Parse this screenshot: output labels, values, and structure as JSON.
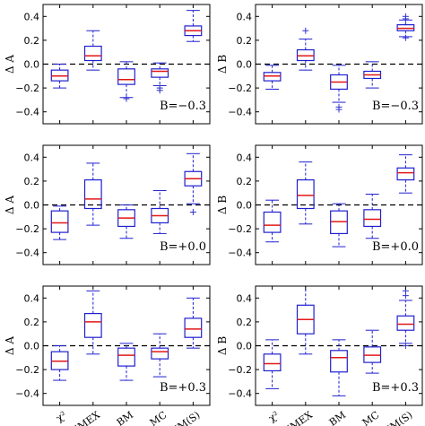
{
  "colors": {
    "box": "#1f1fd0",
    "median": "#e01818",
    "outlier": "#3030d0",
    "zero": "#000000",
    "frame": "#000000"
  },
  "chart_data": [
    {
      "type": "box",
      "ylabel": "Δ A",
      "annotation": "B=−0.3",
      "ylim": [
        -0.5,
        0.5
      ],
      "yticks": [
        "0.4",
        "0.2",
        "0.0",
        "−0.2",
        "−0.4"
      ],
      "categories": [],
      "grid": false,
      "zero_line": "dashed",
      "boxes": [
        {
          "q1": -0.14,
          "median": -0.1,
          "q3": -0.05,
          "low": -0.2,
          "high": 0.0,
          "outliers": []
        },
        {
          "q1": 0.03,
          "median": 0.07,
          "q3": 0.15,
          "low": -0.05,
          "high": 0.28,
          "outliers": []
        },
        {
          "q1": -0.17,
          "median": -0.13,
          "q3": -0.04,
          "low": -0.28,
          "high": 0.02,
          "outliers": [
            -0.29
          ]
        },
        {
          "q1": -0.11,
          "median": -0.06,
          "q3": -0.04,
          "low": -0.18,
          "high": 0.01,
          "outliers": [
            -0.2,
            -0.22
          ]
        },
        {
          "q1": 0.24,
          "median": 0.28,
          "q3": 0.32,
          "low": 0.19,
          "high": 0.45,
          "outliers": []
        }
      ]
    },
    {
      "type": "box",
      "ylabel": "Δ B",
      "annotation": "B=−0.3",
      "ylim": [
        -0.5,
        0.5
      ],
      "yticks": [
        "0.4",
        "0.2",
        "0.0",
        "−0.2",
        "−0.4"
      ],
      "categories": [],
      "grid": false,
      "zero_line": "dashed",
      "boxes": [
        {
          "q1": -0.14,
          "median": -0.1,
          "q3": -0.07,
          "low": -0.21,
          "high": -0.01,
          "outliers": []
        },
        {
          "q1": 0.03,
          "median": 0.07,
          "q3": 0.12,
          "low": -0.05,
          "high": 0.21,
          "outliers": [
            0.28
          ]
        },
        {
          "q1": -0.21,
          "median": -0.15,
          "q3": -0.09,
          "low": -0.32,
          "high": -0.01,
          "outliers": [
            -0.36,
            -0.38
          ]
        },
        {
          "q1": -0.12,
          "median": -0.09,
          "q3": -0.06,
          "low": -0.2,
          "high": 0.02,
          "outliers": []
        },
        {
          "q1": 0.28,
          "median": 0.3,
          "q3": 0.33,
          "low": 0.23,
          "high": 0.37,
          "outliers": [
            0.4,
            0.38,
            0.22
          ]
        }
      ]
    },
    {
      "type": "box",
      "ylabel": "Δ A",
      "annotation": "B=+0.0",
      "ylim": [
        -0.5,
        0.5
      ],
      "yticks": [
        "0.4",
        "0.2",
        "0.0",
        "−0.2",
        "−0.4"
      ],
      "categories": [],
      "grid": false,
      "zero_line": "dashed",
      "boxes": [
        {
          "q1": -0.23,
          "median": -0.15,
          "q3": -0.05,
          "low": -0.29,
          "high": -0.01,
          "outliers": []
        },
        {
          "q1": -0.03,
          "median": 0.05,
          "q3": 0.21,
          "low": -0.17,
          "high": 0.35,
          "outliers": []
        },
        {
          "q1": -0.18,
          "median": -0.11,
          "q3": -0.04,
          "low": -0.28,
          "high": 0.0,
          "outliers": []
        },
        {
          "q1": -0.15,
          "median": -0.09,
          "q3": -0.03,
          "low": -0.24,
          "high": 0.12,
          "outliers": []
        },
        {
          "q1": 0.16,
          "median": 0.22,
          "q3": 0.28,
          "low": 0.01,
          "high": 0.43,
          "outliers": [
            -0.06
          ]
        }
      ]
    },
    {
      "type": "box",
      "ylabel": "Δ B",
      "annotation": "B=+0.0",
      "ylim": [
        -0.5,
        0.5
      ],
      "yticks": [
        "0.4",
        "0.2",
        "0.0",
        "−0.2",
        "−0.4"
      ],
      "categories": [],
      "grid": false,
      "zero_line": "dashed",
      "boxes": [
        {
          "q1": -0.23,
          "median": -0.17,
          "q3": -0.06,
          "low": -0.31,
          "high": 0.04,
          "outliers": []
        },
        {
          "q1": -0.03,
          "median": 0.08,
          "q3": 0.21,
          "low": -0.16,
          "high": 0.36,
          "outliers": []
        },
        {
          "q1": -0.24,
          "median": -0.14,
          "q3": -0.05,
          "low": -0.35,
          "high": 0.01,
          "outliers": []
        },
        {
          "q1": -0.18,
          "median": -0.12,
          "q3": -0.04,
          "low": -0.28,
          "high": 0.09,
          "outliers": []
        },
        {
          "q1": 0.21,
          "median": 0.27,
          "q3": 0.31,
          "low": 0.1,
          "high": 0.42,
          "outliers": []
        }
      ]
    },
    {
      "type": "box",
      "ylabel": "Δ A",
      "annotation": "B=+0.3",
      "ylim": [
        -0.5,
        0.5
      ],
      "yticks": [
        "0.4",
        "0.2",
        "0.0",
        "−0.2",
        "−0.4"
      ],
      "categories": [
        "χ²",
        "SIMEX",
        "BM",
        "MC",
        "HM(S)"
      ],
      "grid": false,
      "zero_line": "dashed",
      "boxes": [
        {
          "q1": -0.2,
          "median": -0.13,
          "q3": -0.05,
          "low": -0.29,
          "high": 0.0,
          "outliers": []
        },
        {
          "q1": 0.07,
          "median": 0.2,
          "q3": 0.27,
          "low": -0.07,
          "high": 0.46,
          "outliers": []
        },
        {
          "q1": -0.17,
          "median": -0.08,
          "q3": -0.02,
          "low": -0.29,
          "high": 0.02,
          "outliers": []
        },
        {
          "q1": -0.11,
          "median": -0.05,
          "q3": -0.02,
          "low": -0.26,
          "high": 0.1,
          "outliers": []
        },
        {
          "q1": 0.07,
          "median": 0.14,
          "q3": 0.23,
          "low": -0.02,
          "high": 0.4,
          "outliers": []
        }
      ]
    },
    {
      "type": "box",
      "ylabel": "Δ B",
      "annotation": "B=+0.3",
      "ylim": [
        -0.5,
        0.5
      ],
      "yticks": [
        "0.4",
        "0.2",
        "0.0",
        "−0.2",
        "−0.4"
      ],
      "categories": [
        "χ²",
        "SIMEX",
        "BM",
        "MC",
        "HM(S)"
      ],
      "grid": false,
      "zero_line": "dashed",
      "boxes": [
        {
          "q1": -0.21,
          "median": -0.15,
          "q3": -0.07,
          "low": -0.36,
          "high": 0.05,
          "outliers": []
        },
        {
          "q1": 0.1,
          "median": 0.22,
          "q3": 0.34,
          "low": -0.07,
          "high": 0.5,
          "outliers": []
        },
        {
          "q1": -0.22,
          "median": -0.1,
          "q3": -0.04,
          "low": -0.42,
          "high": 0.05,
          "outliers": []
        },
        {
          "q1": -0.14,
          "median": -0.08,
          "q3": -0.01,
          "low": -0.23,
          "high": 0.13,
          "outliers": []
        },
        {
          "q1": 0.13,
          "median": 0.18,
          "q3": 0.25,
          "low": 0.02,
          "high": 0.38,
          "outliers": [
            0.46,
            0.42,
            0.0
          ]
        }
      ]
    }
  ]
}
